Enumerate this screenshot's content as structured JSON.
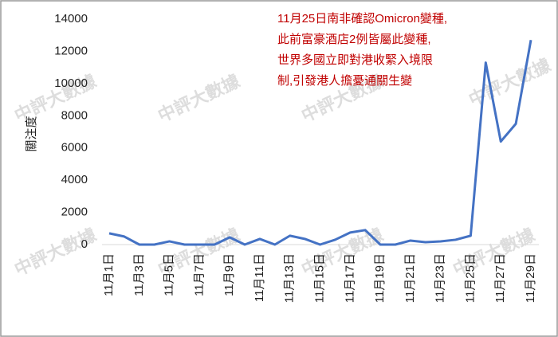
{
  "chart_data": {
    "type": "line",
    "annotation": [
      "11月25日南非確認Omicron變種,",
      "此前富豪酒店2例皆屬此變種,",
      "世界多國立即對港收緊入境限",
      "制,引發港人擔憂通關生變"
    ],
    "y_label": "關注度",
    "watermark": "中評大數據",
    "categories": [
      "11月1日",
      null,
      "11月3日",
      null,
      "11月5日",
      null,
      "11月7日",
      null,
      "11月9日",
      null,
      "11月11日",
      null,
      "11月13日",
      null,
      "11月15日",
      null,
      "11月17日",
      null,
      "11月19日",
      null,
      "11月21日",
      null,
      "11月23日",
      null,
      "11月25日",
      null,
      "11月27日",
      null,
      "11月29日"
    ],
    "series": [
      {
        "color": "#4472c4",
        "values": [
          700,
          500,
          0,
          0,
          200,
          0,
          0,
          0,
          450,
          0,
          350,
          0,
          550,
          350,
          0,
          300,
          750,
          900,
          0,
          0,
          250,
          150,
          200,
          300,
          550,
          11300,
          6400,
          7500,
          12700
        ]
      }
    ],
    "ylim": [
      0,
      14000
    ],
    "yticks": [
      0,
      2000,
      4000,
      6000,
      8000,
      10000,
      12000,
      14000
    ],
    "annotation_color": "#c00000"
  }
}
